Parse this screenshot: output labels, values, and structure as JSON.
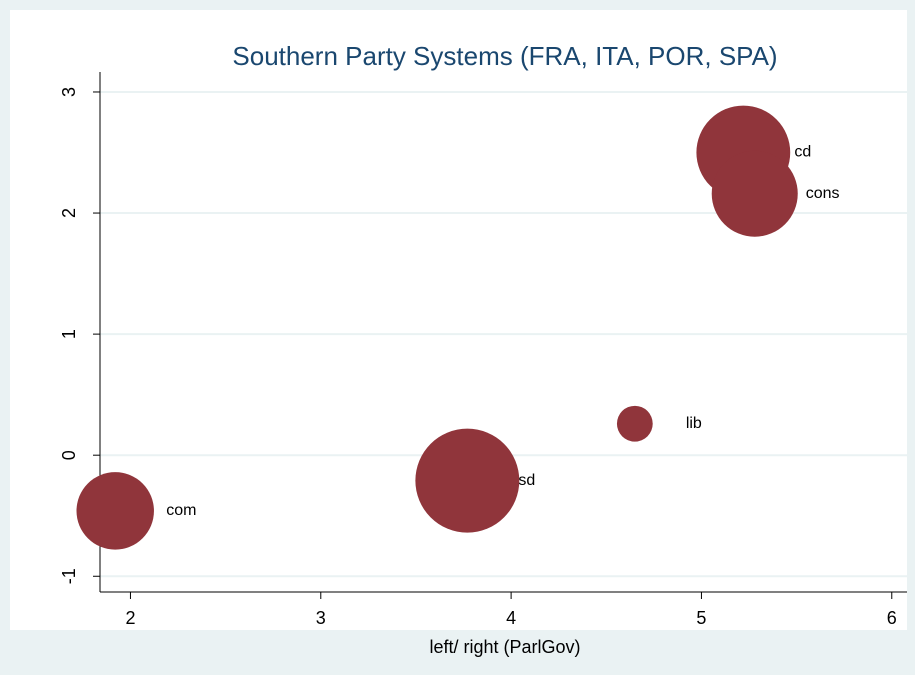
{
  "chart_data": {
    "type": "bubble",
    "title": "Southern Party Systems (FRA, ITA, POR, SPA)",
    "x_label": "left/ right (ParlGov)",
    "series": [
      {
        "color": "#90353b",
        "labels": [
          "cd",
          "cons",
          "lib",
          "sd",
          "com"
        ],
        "x": [
          5.22,
          5.28,
          4.65,
          3.77,
          1.92
        ],
        "values": [
          2.5,
          2.16,
          0.26,
          -0.21,
          -0.46
        ],
        "sizes": [
          22,
          18.5,
          3.2,
          27,
          15
        ]
      }
    ],
    "xlim": [
      1.84,
      6.08
    ],
    "xticks": [
      2,
      3,
      4,
      5,
      6
    ],
    "ylim": [
      -1.13,
      3.165
    ],
    "yticks": [
      -1,
      0,
      1,
      2,
      3
    ],
    "grid": true
  }
}
